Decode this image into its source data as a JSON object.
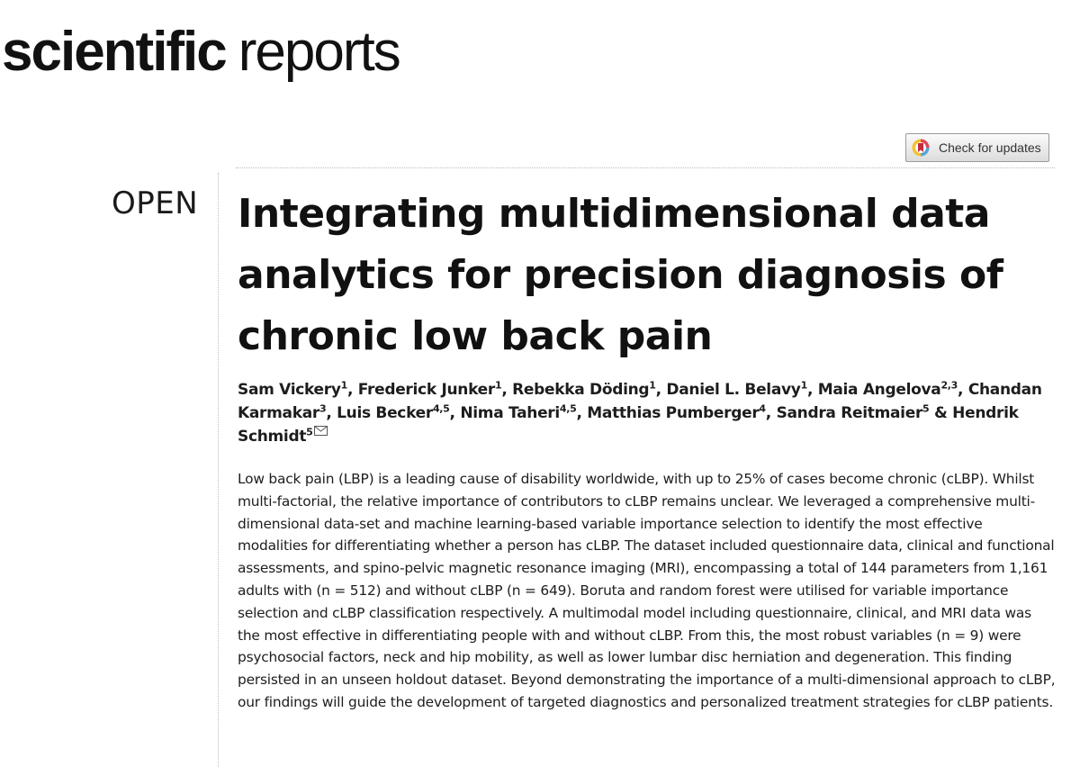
{
  "journal": {
    "name_bold": "scientific",
    "name_light": "reports"
  },
  "check_updates": {
    "label": "Check for updates",
    "icon": "crossmark-icon"
  },
  "article": {
    "access": "OPEN",
    "title": "Integrating multidimensional data analytics for precision diagnosis of chronic low back pain",
    "authors": [
      {
        "name": "Sam Vickery",
        "aff": "1",
        "sep": ", "
      },
      {
        "name": "Frederick Junker",
        "aff": "1",
        "sep": ", "
      },
      {
        "name": "Rebekka Döding",
        "aff": "1",
        "sep": ", "
      },
      {
        "name": "Daniel L. Belavy",
        "aff": "1",
        "sep": ", "
      },
      {
        "name": "Maia Angelova",
        "aff": "2,3",
        "sep": ", "
      },
      {
        "name": "Chandan Karmakar",
        "aff": "3",
        "sep": ", "
      },
      {
        "name": "Luis Becker",
        "aff": "4,5",
        "sep": ", "
      },
      {
        "name": "Nima Taheri",
        "aff": "4,5",
        "sep": ", "
      },
      {
        "name": "Matthias Pumberger",
        "aff": "4",
        "sep": ", "
      },
      {
        "name": "Sandra Reitmaier",
        "aff": "5",
        "sep": " & "
      },
      {
        "name": "Hendrik Schmidt",
        "aff": "5",
        "sep": ""
      }
    ],
    "corresponding_icon": "envelope-icon",
    "abstract": "Low back pain (LBP) is a leading cause of disability worldwide, with up to 25% of cases become chronic (cLBP). Whilst multi-factorial, the relative importance of contributors to cLBP remains unclear. We leveraged a comprehensive multi-dimensional data-set and machine learning-based variable importance selection to identify the most effective modalities for differentiating whether a person has cLBP. The dataset included questionnaire data, clinical and functional assessments, and spino-pelvic magnetic resonance imaging (MRI), encompassing a total of 144 parameters from 1,161 adults with (n = 512) and without cLBP (n = 649). Boruta and random forest were utilised for variable importance selection and cLBP classification respectively. A multimodal model including questionnaire, clinical, and MRI data was the most effective in differentiating people with and without cLBP. From this, the most robust variables (n = 9) were psychosocial factors, neck and hip mobility, as well as lower lumbar disc herniation and degeneration. This finding persisted in an unseen holdout dataset. Beyond demonstrating the importance of a multi-dimensional approach to cLBP, our findings will guide the development of targeted diagnostics and personalized treatment strategies for cLBP patients."
  }
}
